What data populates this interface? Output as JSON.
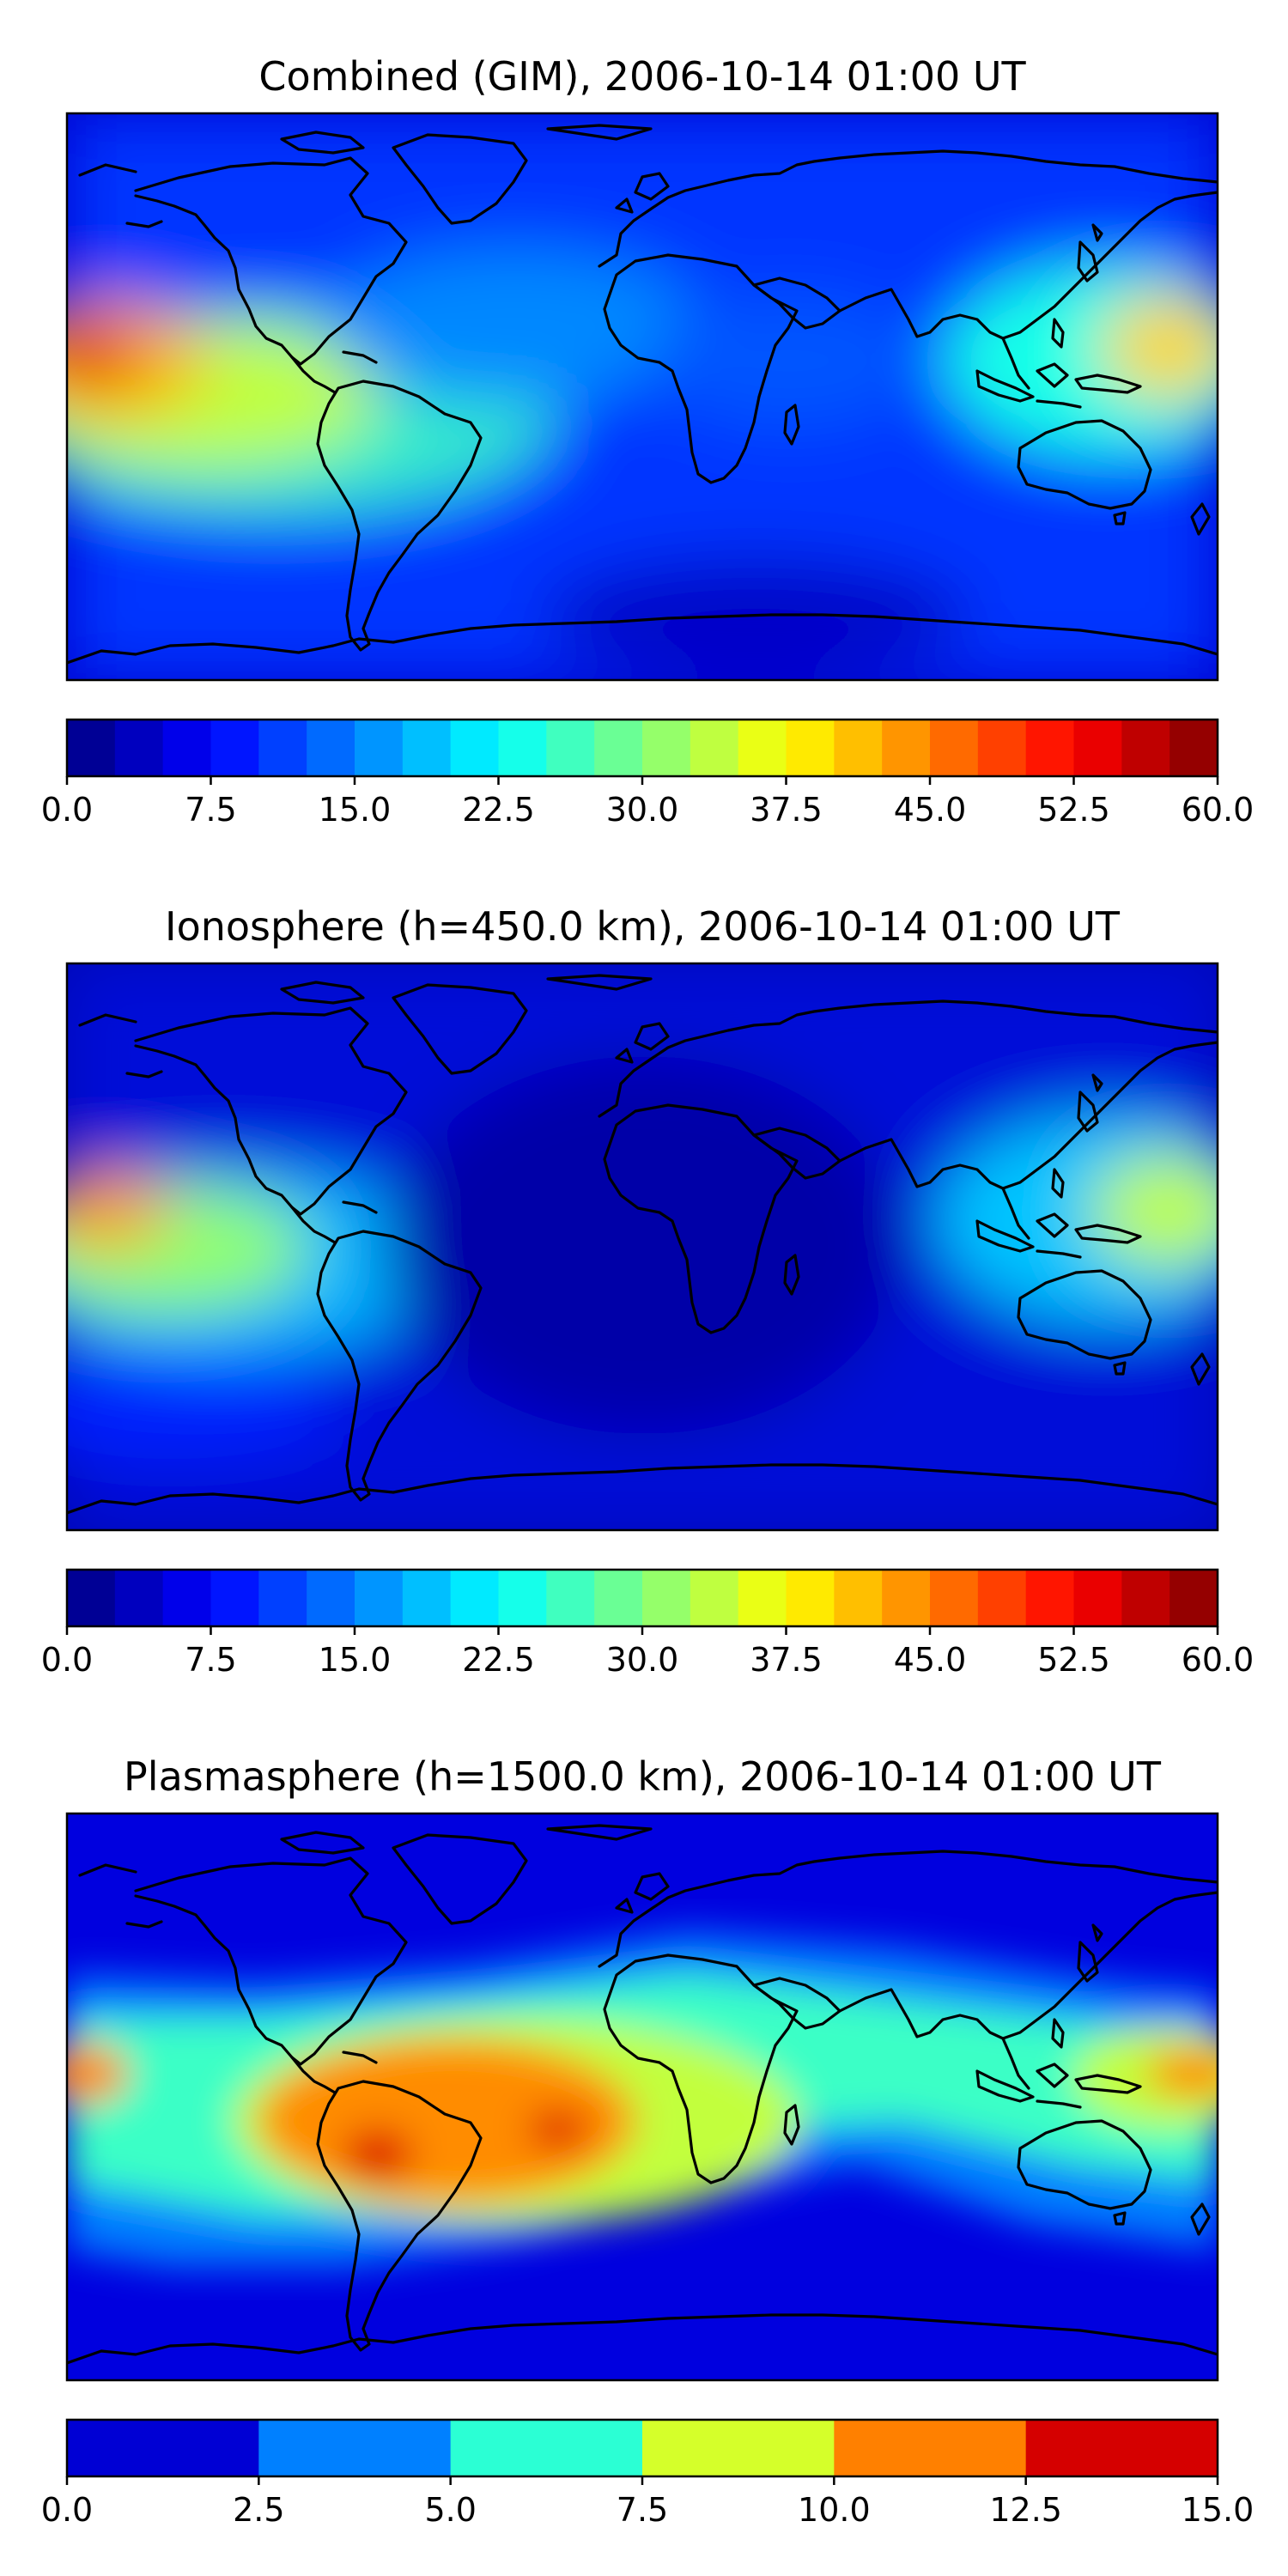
{
  "panels": [
    {
      "title": "Combined (GIM), 2006-10-14 01:00 UT",
      "colorbar": {
        "min": 0.0,
        "max": 60.0,
        "levels": 24,
        "ticks": [
          "0.0",
          "7.5",
          "15.0",
          "22.5",
          "30.0",
          "37.5",
          "45.0",
          "52.5",
          "60.0"
        ]
      }
    },
    {
      "title": "Ionosphere  (h=450.0 km), 2006-10-14 01:00 UT",
      "colorbar": {
        "min": 0.0,
        "max": 60.0,
        "levels": 24,
        "ticks": [
          "0.0",
          "7.5",
          "15.0",
          "22.5",
          "30.0",
          "37.5",
          "45.0",
          "52.5",
          "60.0"
        ]
      }
    },
    {
      "title": "Plasmasphere (h=1500.0 km), 2006-10-14 01:00 UT",
      "colorbar": {
        "min": 0.0,
        "max": 15.0,
        "levels": 6,
        "ticks": [
          "0.0",
          "2.5",
          "5.0",
          "7.5",
          "10.0",
          "12.5",
          "15.0"
        ]
      }
    }
  ],
  "colormap": "jet"
}
